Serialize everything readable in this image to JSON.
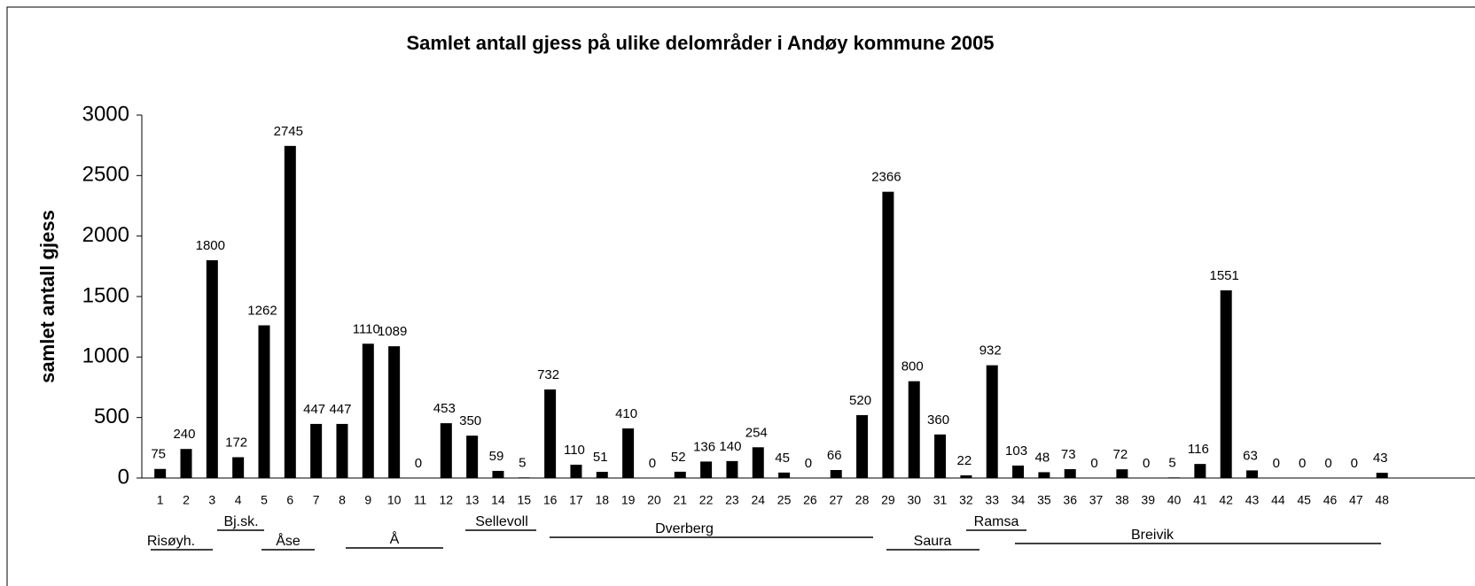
{
  "chart_data": {
    "type": "bar",
    "title": "Samlet antall gjess på ulike delområder i Andøy kommune 2005",
    "y_label": "samlet antall gjess",
    "categories": [
      "1",
      "2",
      "3",
      "4",
      "5",
      "6",
      "7",
      "8",
      "9",
      "10",
      "11",
      "12",
      "13",
      "14",
      "15",
      "16",
      "17",
      "18",
      "19",
      "20",
      "21",
      "22",
      "23",
      "24",
      "25",
      "26",
      "27",
      "28",
      "29",
      "30",
      "31",
      "32",
      "33",
      "34",
      "35",
      "36",
      "37",
      "38",
      "39",
      "40",
      "41",
      "42",
      "43",
      "44",
      "45",
      "46",
      "47",
      "48"
    ],
    "values": [
      75,
      240,
      1800,
      172,
      1262,
      2745,
      447,
      447,
      1110,
      1089,
      0,
      453,
      350,
      59,
      5,
      732,
      110,
      51,
      410,
      0,
      52,
      136,
      140,
      254,
      45,
      0,
      66,
      520,
      2366,
      800,
      360,
      22,
      932,
      103,
      48,
      73,
      0,
      72,
      0,
      5,
      116,
      1551,
      63,
      0,
      0,
      0,
      0,
      43
    ],
    "color": "#000000",
    "ylim": [
      0,
      3000
    ],
    "yticks": [
      0,
      500,
      1000,
      1500,
      2000,
      2500,
      3000
    ],
    "grid": false,
    "groups": [
      "Risøyh.",
      "Bj.sk.",
      "Åse",
      "Å",
      "Sellevoll",
      "Dverberg",
      "Saura",
      "Ramsa",
      "Breivik"
    ]
  }
}
